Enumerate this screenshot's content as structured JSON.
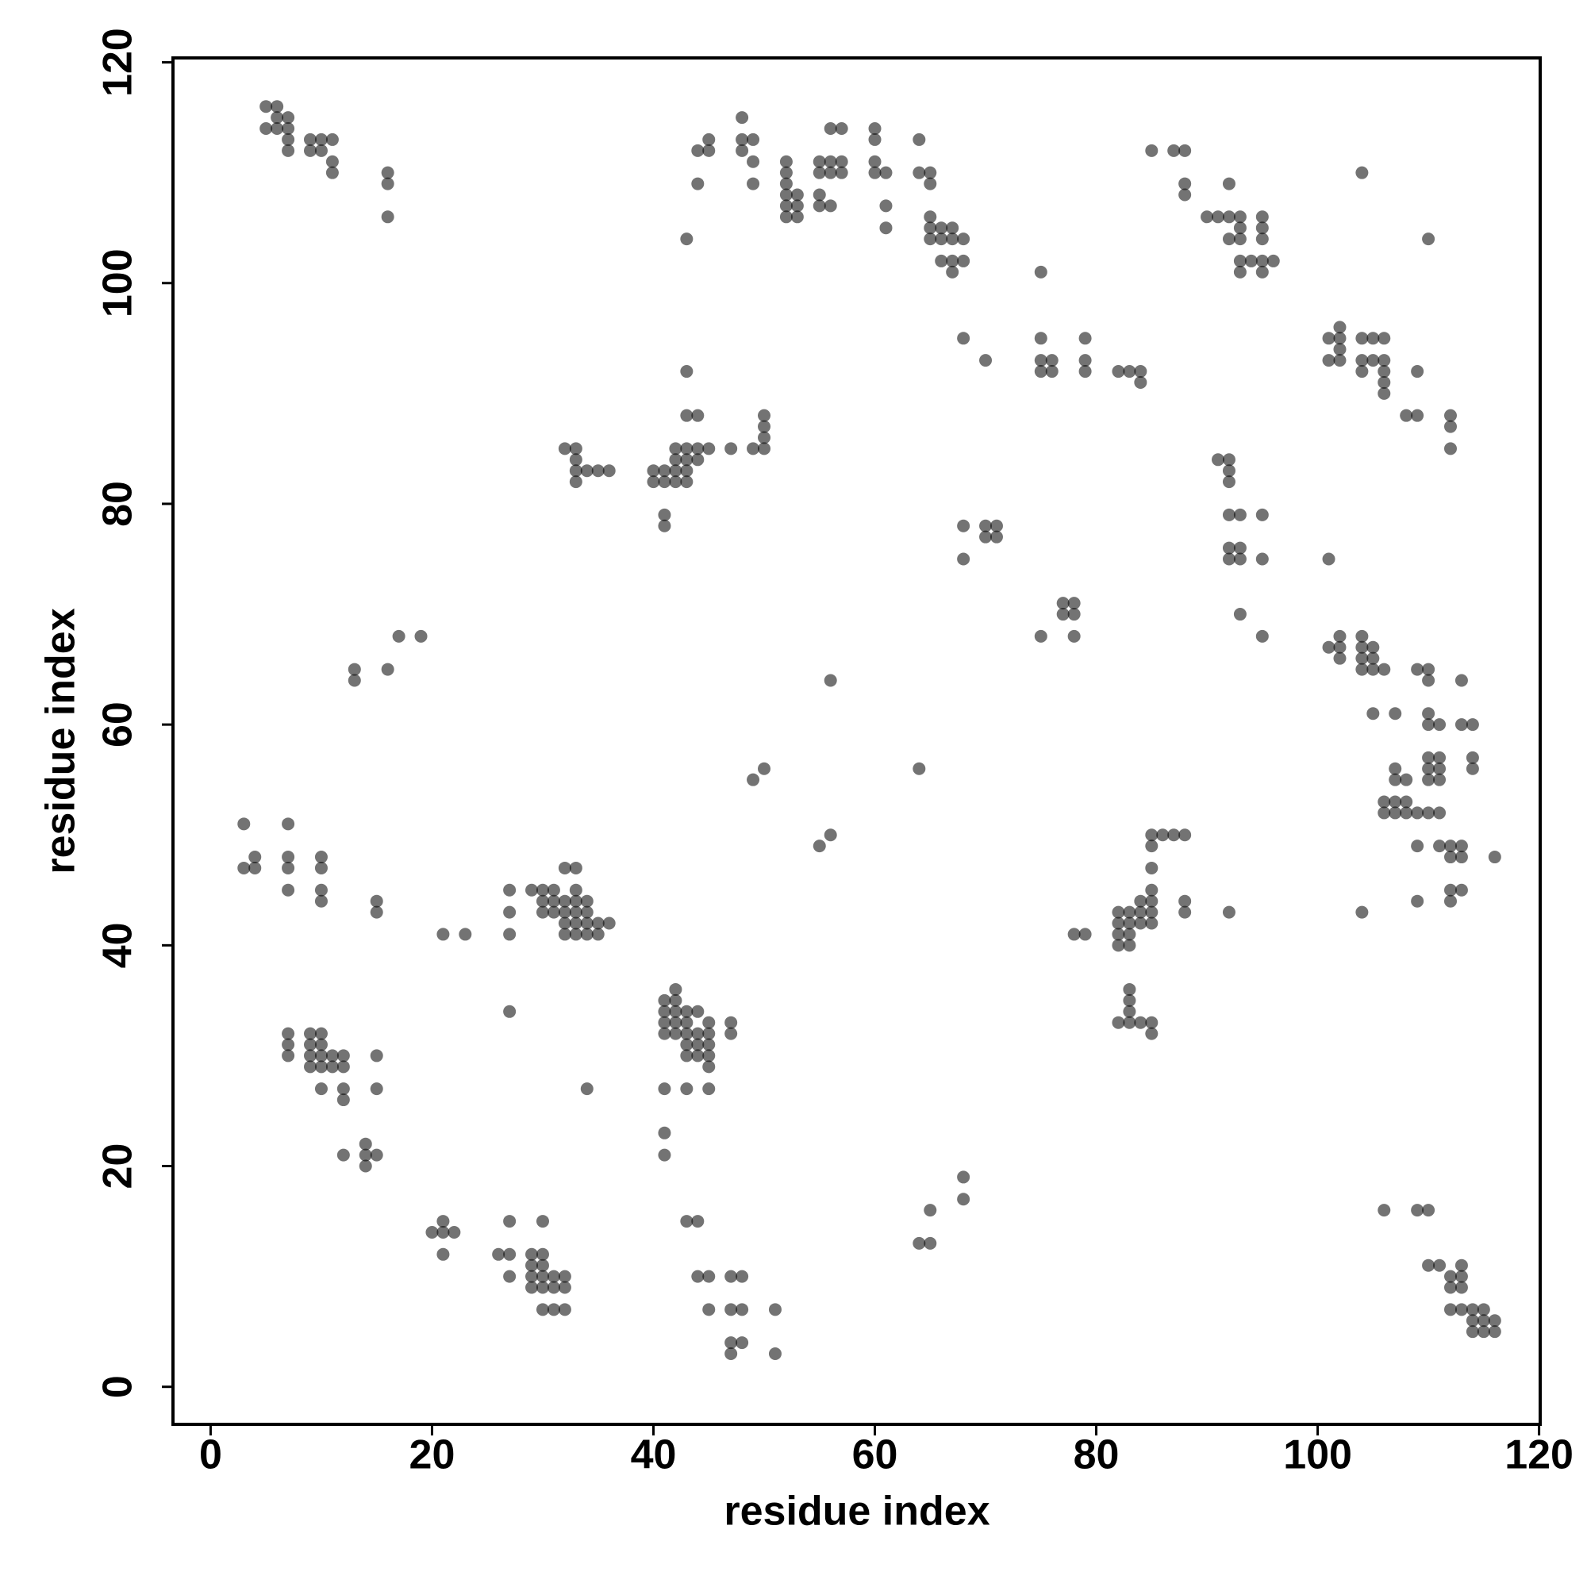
{
  "chart_data": {
    "type": "scatter",
    "xlabel": "residue index",
    "ylabel": "residue index",
    "xlim": [
      -3.4,
      120.1
    ],
    "ylim": [
      -3.4,
      120.4
    ],
    "xticks": [
      0,
      20,
      40,
      60,
      80,
      100,
      120
    ],
    "yticks": [
      0,
      20,
      40,
      60,
      80,
      100,
      120
    ],
    "color": "#000000",
    "opacity": 0.55,
    "grid": false,
    "x": [
      5,
      6,
      5,
      6,
      6,
      7,
      7,
      7,
      7,
      9,
      10,
      11,
      9,
      10,
      11,
      11,
      16,
      16,
      16,
      43,
      44,
      45,
      45,
      44,
      48,
      48,
      49,
      48,
      49,
      49,
      52,
      52,
      52,
      52,
      52,
      52,
      53,
      53,
      53,
      55,
      56,
      55,
      56,
      55,
      55,
      56,
      56,
      57,
      57,
      57,
      60,
      60,
      60,
      60,
      61,
      61,
      61,
      64,
      64,
      65,
      65,
      65,
      65,
      65,
      66,
      66,
      66,
      67,
      67,
      67,
      67,
      68,
      68,
      85,
      87,
      88,
      88,
      88,
      90,
      91,
      92,
      92,
      92,
      93,
      93,
      93,
      93,
      93,
      94,
      95,
      95,
      95,
      95,
      95,
      96,
      104,
      110,
      68,
      70,
      75,
      75,
      75,
      75,
      76,
      76,
      79,
      79,
      79,
      82,
      83,
      84,
      84,
      101,
      102,
      101,
      102,
      102,
      102,
      104,
      104,
      104,
      105,
      105,
      106,
      106,
      106,
      106,
      106,
      108,
      109,
      109,
      112,
      112,
      112,
      32,
      33,
      33,
      33,
      33,
      34,
      35,
      36,
      40,
      40,
      41,
      41,
      42,
      42,
      42,
      42,
      43,
      43,
      43,
      43,
      43,
      44,
      43,
      44,
      44,
      45,
      47,
      49,
      50,
      50,
      50,
      50,
      41,
      41,
      68,
      68,
      70,
      71,
      70,
      71,
      77,
      78,
      77,
      78,
      75,
      78,
      91,
      92,
      92,
      92,
      92,
      93,
      92,
      93,
      92,
      93,
      95,
      95,
      93,
      95,
      101,
      101,
      102,
      102,
      102,
      104,
      104,
      104,
      104,
      105,
      105,
      105,
      106,
      105,
      107,
      109,
      110,
      110,
      113,
      110,
      110,
      111,
      113,
      114,
      114,
      114,
      110,
      111,
      110,
      111,
      110,
      111,
      107,
      107,
      108,
      106,
      107,
      108,
      106,
      107,
      108,
      109,
      110,
      111,
      109,
      111,
      112,
      113,
      112,
      113,
      116,
      113,
      112,
      112,
      109,
      104,
      92,
      13,
      13,
      16,
      17,
      19,
      3,
      3,
      4,
      4,
      7,
      7,
      7,
      7,
      10,
      10,
      10,
      10,
      15,
      15,
      21,
      23,
      27,
      27,
      27,
      29,
      30,
      30,
      30,
      31,
      31,
      31,
      32,
      32,
      32,
      32,
      32,
      33,
      33,
      33,
      33,
      33,
      33,
      34,
      34,
      34,
      34,
      35,
      35,
      36,
      27,
      49,
      50,
      55,
      56,
      56,
      64,
      82,
      82,
      82,
      82,
      83,
      83,
      83,
      83,
      84,
      84,
      84,
      85,
      85,
      85,
      85,
      85,
      85,
      85,
      86,
      87,
      88,
      88,
      88,
      78,
      79,
      83,
      83,
      83,
      82,
      83,
      84,
      85,
      85,
      7,
      7,
      7,
      9,
      9,
      9,
      9,
      10,
      10,
      10,
      10,
      10,
      11,
      11,
      12,
      12,
      12,
      12,
      15,
      15,
      12,
      14,
      14,
      14,
      15,
      41,
      41,
      41,
      41,
      42,
      42,
      42,
      42,
      42,
      43,
      43,
      43,
      43,
      43,
      44,
      44,
      44,
      44,
      45,
      45,
      45,
      45,
      45,
      47,
      47,
      34,
      41,
      43,
      45,
      41,
      41,
      20,
      21,
      21,
      22,
      21,
      26,
      27,
      27,
      27,
      29,
      29,
      29,
      29,
      30,
      30,
      30,
      30,
      30,
      30,
      31,
      31,
      31,
      32,
      32,
      32,
      43,
      44,
      44,
      45,
      45,
      47,
      48,
      47,
      48,
      47,
      48,
      47,
      51,
      51,
      64,
      65,
      65,
      68,
      68,
      106,
      109,
      110,
      110,
      111,
      112,
      113,
      112,
      113,
      113,
      112,
      113,
      114,
      115,
      114,
      115,
      116,
      114,
      115,
      116
    ],
    "y": [
      116,
      116,
      114,
      114,
      115,
      115,
      114,
      113,
      112,
      113,
      113,
      113,
      112,
      112,
      111,
      110,
      110,
      109,
      106,
      104,
      112,
      112,
      113,
      109,
      115,
      113,
      113,
      112,
      111,
      109,
      111,
      110,
      109,
      108,
      107,
      106,
      108,
      107,
      106,
      111,
      111,
      110,
      110,
      108,
      107,
      107,
      114,
      114,
      111,
      110,
      114,
      113,
      111,
      110,
      110,
      107,
      105,
      113,
      110,
      110,
      109,
      106,
      105,
      104,
      105,
      104,
      102,
      105,
      104,
      102,
      101,
      104,
      102,
      112,
      112,
      112,
      109,
      108,
      106,
      106,
      106,
      109,
      104,
      106,
      105,
      104,
      102,
      101,
      102,
      106,
      105,
      104,
      102,
      101,
      102,
      110,
      104,
      95,
      93,
      101,
      95,
      93,
      92,
      93,
      92,
      95,
      93,
      92,
      92,
      92,
      92,
      91,
      95,
      95,
      93,
      96,
      94,
      93,
      95,
      93,
      92,
      95,
      93,
      95,
      93,
      92,
      91,
      90,
      88,
      92,
      88,
      88,
      87,
      85,
      85,
      85,
      84,
      83,
      82,
      83,
      83,
      83,
      83,
      82,
      83,
      82,
      83,
      82,
      84,
      85,
      85,
      84,
      83,
      82,
      88,
      88,
      92,
      85,
      84,
      85,
      85,
      85,
      88,
      87,
      86,
      85,
      79,
      78,
      78,
      75,
      78,
      78,
      77,
      77,
      71,
      71,
      70,
      70,
      68,
      68,
      84,
      84,
      83,
      82,
      79,
      79,
      76,
      76,
      75,
      75,
      79,
      75,
      70,
      68,
      75,
      67,
      68,
      67,
      66,
      68,
      67,
      66,
      65,
      67,
      66,
      65,
      65,
      61,
      61,
      65,
      65,
      64,
      64,
      61,
      60,
      60,
      60,
      60,
      57,
      56,
      57,
      57,
      56,
      56,
      55,
      55,
      56,
      55,
      55,
      53,
      53,
      53,
      52,
      52,
      52,
      52,
      52,
      52,
      49,
      49,
      49,
      49,
      48,
      48,
      48,
      45,
      45,
      44,
      44,
      43,
      43,
      65,
      64,
      65,
      68,
      68,
      51,
      47,
      48,
      47,
      51,
      48,
      47,
      45,
      48,
      47,
      45,
      44,
      44,
      43,
      41,
      41,
      45,
      43,
      41,
      45,
      45,
      44,
      43,
      45,
      44,
      43,
      44,
      43,
      42,
      41,
      47,
      47,
      45,
      44,
      43,
      42,
      41,
      44,
      43,
      42,
      41,
      42,
      41,
      42,
      34,
      55,
      56,
      49,
      50,
      64,
      56,
      43,
      42,
      41,
      40,
      43,
      42,
      41,
      40,
      44,
      43,
      42,
      50,
      49,
      47,
      45,
      44,
      43,
      42,
      50,
      50,
      50,
      44,
      43,
      41,
      41,
      36,
      35,
      34,
      33,
      33,
      33,
      33,
      32,
      32,
      31,
      30,
      32,
      31,
      30,
      29,
      32,
      31,
      30,
      29,
      27,
      30,
      29,
      30,
      29,
      27,
      26,
      30,
      27,
      21,
      22,
      21,
      20,
      21,
      35,
      34,
      33,
      32,
      36,
      35,
      34,
      33,
      32,
      34,
      33,
      32,
      31,
      30,
      34,
      32,
      31,
      30,
      33,
      32,
      31,
      30,
      29,
      33,
      32,
      27,
      27,
      27,
      27,
      23,
      21,
      14,
      15,
      14,
      14,
      12,
      12,
      12,
      15,
      10,
      12,
      11,
      10,
      9,
      15,
      12,
      11,
      10,
      9,
      7,
      10,
      9,
      7,
      10,
      9,
      7,
      15,
      15,
      10,
      10,
      7,
      10,
      10,
      7,
      7,
      4,
      4,
      3,
      7,
      3,
      13,
      13,
      16,
      19,
      17,
      16,
      16,
      16,
      11,
      11,
      10,
      11,
      9,
      10,
      9,
      7,
      7,
      7,
      7,
      6,
      6,
      6,
      5,
      5,
      5
    ]
  }
}
